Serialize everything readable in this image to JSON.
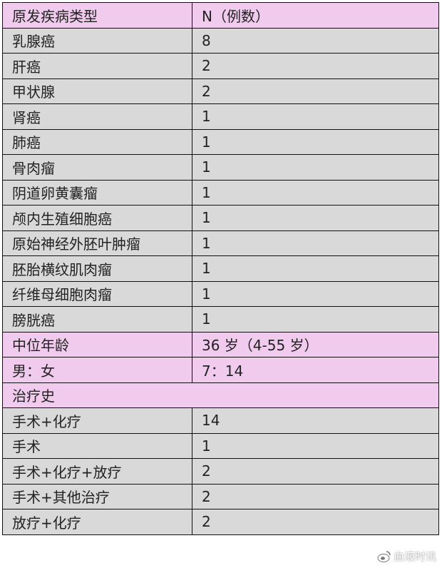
{
  "colors": {
    "header_bg": "#f1cbee",
    "row_bg": "#d9d9d9"
  },
  "header": [
    "原发疾病类型",
    "N（例数）"
  ],
  "rows": [
    {
      "label": "乳腺癌",
      "value": "8",
      "style": "gray"
    },
    {
      "label": "肝癌",
      "value": "2",
      "style": "gray"
    },
    {
      "label": "甲状腺",
      "value": "2",
      "style": "gray"
    },
    {
      "label": "肾癌",
      "value": "1",
      "style": "gray"
    },
    {
      "label": "肺癌",
      "value": "1",
      "style": "gray"
    },
    {
      "label": "骨肉瘤",
      "value": "1",
      "style": "gray"
    },
    {
      "label": "阴道卵黄囊瘤",
      "value": "1",
      "style": "gray"
    },
    {
      "label": "颅内生殖细胞癌",
      "value": "1",
      "style": "gray"
    },
    {
      "label": "原始神经外胚叶肿瘤",
      "value": "1",
      "style": "gray"
    },
    {
      "label": "胚胎横纹肌肉瘤",
      "value": "1",
      "style": "gray"
    },
    {
      "label": "纤维母细胞肉瘤",
      "value": "1",
      "style": "gray"
    },
    {
      "label": "膀胱癌",
      "value": "1",
      "style": "gray"
    },
    {
      "label": "中位年龄",
      "value": "36 岁（4-55 岁）",
      "style": "pink"
    },
    {
      "label": "男：女",
      "value": "7：14",
      "style": "pink"
    },
    {
      "label": "治疗史",
      "value": null,
      "style": "pink"
    },
    {
      "label": "手术+化疗",
      "value": "14",
      "style": "gray"
    },
    {
      "label": "手术",
      "value": "1",
      "style": "gray"
    },
    {
      "label": "手术+化疗+放疗",
      "value": "2",
      "style": "gray"
    },
    {
      "label": "手术+其他治疗",
      "value": "2",
      "style": "gray"
    },
    {
      "label": "放疗+化疗",
      "value": "2",
      "style": "gray"
    }
  ],
  "watermark": {
    "icon": "weibo-icon",
    "text": "血液时讯"
  }
}
